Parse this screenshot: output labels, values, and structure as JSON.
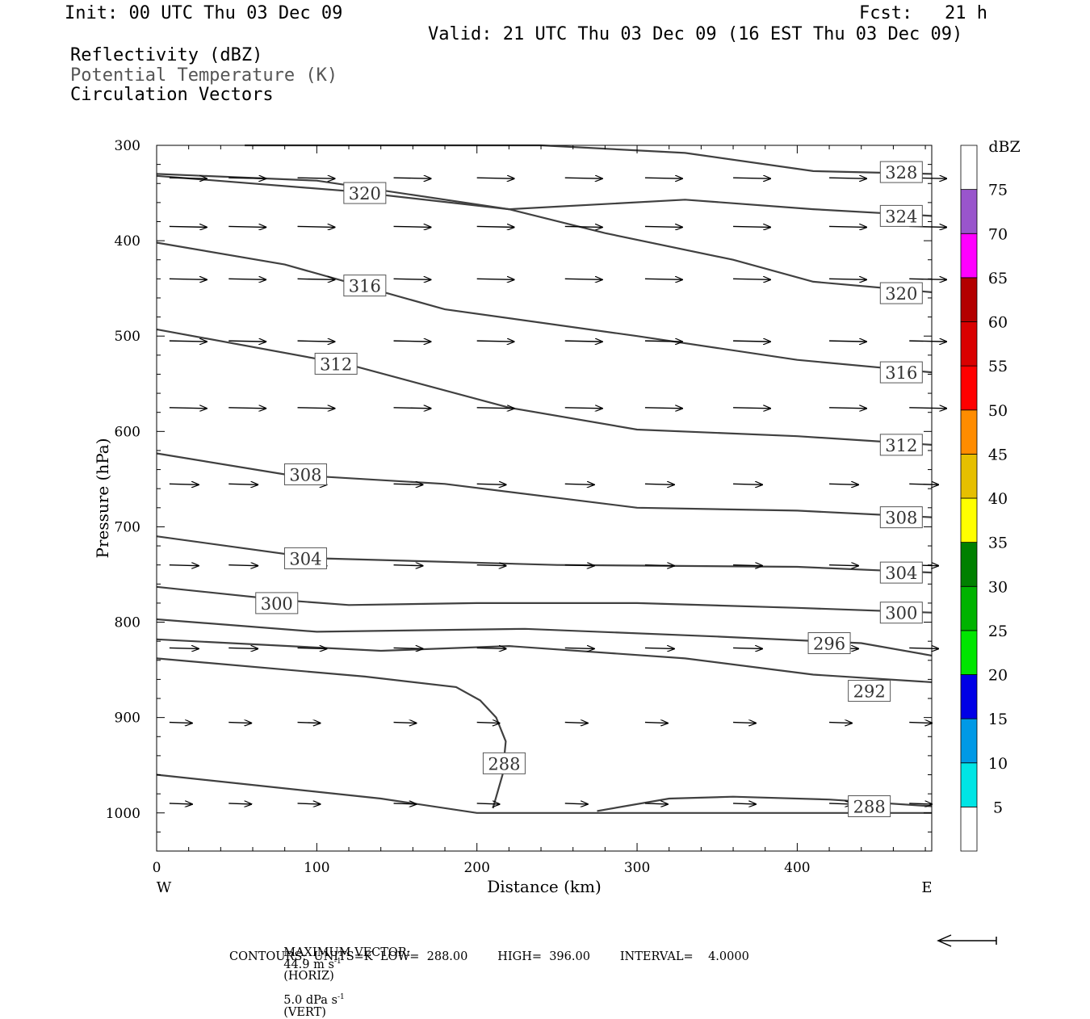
{
  "header": {
    "init": "Init: 00 UTC Thu 03 Dec 09",
    "fcst": "Fcst:   21 h",
    "valid": "Valid: 21 UTC Thu 03 Dec 09 (16 EST Thu 03 Dec 09)",
    "field1": "Reflectivity (dBZ)",
    "field2": "Potential Temperature (K)",
    "field3": "Circulation Vectors"
  },
  "footer": {
    "max_vector_label": "MAXIMUM VECTOR:",
    "max_vector_horiz": "44.9 m s",
    "horiz_tag": "(HORIZ)",
    "max_vector_vert": "5.0 dPa s",
    "vert_tag": "(VERT)",
    "sup": "-1",
    "contours": "CONTOURS:  UNITS=K  LOW=  288.00        HIGH=  396.00        INTERVAL=    4.0000"
  },
  "colors": {
    "contour": "#404040",
    "vector": "#000000"
  },
  "chart_data": {
    "type": "line",
    "title": "",
    "xlabel": "Distance (km)",
    "ylabel": "Pressure (hPa)",
    "xlim": [
      0,
      484
    ],
    "ylim": [
      1040,
      300
    ],
    "x_ticks": [
      0,
      100,
      200,
      300,
      400
    ],
    "y_ticks": [
      300,
      400,
      500,
      600,
      700,
      800,
      900,
      1000
    ],
    "x_end_labels": {
      "left": "W",
      "right": "E"
    },
    "colorbar": {
      "unit": "dBZ",
      "labels": [
        "5",
        "10",
        "15",
        "20",
        "25",
        "30",
        "35",
        "40",
        "45",
        "50",
        "55",
        "60",
        "65",
        "70",
        "75"
      ],
      "colors": [
        "#ffffff",
        "#00e5e5",
        "#0099e6",
        "#0000e6",
        "#00e600",
        "#00b300",
        "#008000",
        "#ffff00",
        "#e6bf00",
        "#ff8c00",
        "#ff0000",
        "#d90000",
        "#b30000",
        "#ff00ff",
        "#9955cc",
        "#ffffff"
      ]
    },
    "contours": [
      {
        "label": "328",
        "points": [
          [
            55,
            300
          ],
          [
            240,
            300
          ],
          [
            330,
            308
          ],
          [
            410,
            327
          ],
          [
            484,
            330
          ]
        ],
        "label_pos": [
          465,
          328
        ]
      },
      {
        "label": "324",
        "points": [
          [
            0,
            330
          ],
          [
            100,
            337
          ],
          [
            220,
            367
          ],
          [
            330,
            357
          ],
          [
            410,
            367
          ],
          [
            484,
            374
          ]
        ],
        "label_pos": [
          465,
          374
        ]
      },
      {
        "label": "320",
        "points": [
          [
            0,
            332
          ],
          [
            120,
            348
          ],
          [
            220,
            367
          ],
          [
            280,
            392
          ],
          [
            360,
            420
          ],
          [
            410,
            443
          ],
          [
            484,
            454
          ]
        ],
        "label_pos": [
          130,
          350
        ]
      },
      {
        "label": "320",
        "points": [],
        "label_pos": [
          465,
          455
        ]
      },
      {
        "label": "316",
        "points": [
          [
            0,
            402
          ],
          [
            80,
            425
          ],
          [
            180,
            472
          ],
          [
            300,
            500
          ],
          [
            400,
            525
          ],
          [
            484,
            538
          ]
        ],
        "label_pos": [
          130,
          447
        ]
      },
      {
        "label": "316",
        "points": [],
        "label_pos": [
          465,
          538
        ]
      },
      {
        "label": "312",
        "points": [
          [
            0,
            493
          ],
          [
            120,
            530
          ],
          [
            220,
            575
          ],
          [
            300,
            598
          ],
          [
            400,
            605
          ],
          [
            484,
            614
          ]
        ],
        "label_pos": [
          112,
          529
        ]
      },
      {
        "label": "312",
        "points": [],
        "label_pos": [
          465,
          614
        ]
      },
      {
        "label": "308",
        "points": [
          [
            0,
            623
          ],
          [
            80,
            645
          ],
          [
            180,
            655
          ],
          [
            300,
            680
          ],
          [
            400,
            683
          ],
          [
            484,
            690
          ]
        ],
        "label_pos": [
          93,
          645
        ]
      },
      {
        "label": "308",
        "points": [],
        "label_pos": [
          465,
          690
        ]
      },
      {
        "label": "304",
        "points": [
          [
            0,
            710
          ],
          [
            100,
            733
          ],
          [
            250,
            740
          ],
          [
            400,
            742
          ],
          [
            484,
            748
          ]
        ],
        "label_pos": [
          93,
          733
        ]
      },
      {
        "label": "304",
        "points": [],
        "label_pos": [
          465,
          748
        ]
      },
      {
        "label": "300",
        "points": [
          [
            0,
            763
          ],
          [
            80,
            777
          ],
          [
            120,
            782
          ],
          [
            200,
            780
          ],
          [
            300,
            780
          ],
          [
            400,
            785
          ],
          [
            484,
            790
          ]
        ],
        "label_pos": [
          75,
          780
        ]
      },
      {
        "label": "300",
        "points": [],
        "label_pos": [
          465,
          790
        ]
      },
      {
        "label": "296",
        "points": [
          [
            0,
            797
          ],
          [
            100,
            810
          ],
          [
            230,
            807
          ],
          [
            350,
            815
          ],
          [
            440,
            822
          ],
          [
            484,
            835
          ]
        ],
        "label_pos": [
          420,
          822
        ]
      },
      {
        "label": "292",
        "points": [
          [
            0,
            818
          ],
          [
            140,
            830
          ],
          [
            220,
            825
          ],
          [
            330,
            838
          ],
          [
            410,
            855
          ],
          [
            484,
            863
          ]
        ],
        "label_pos": [
          445,
          872
        ]
      },
      {
        "label": "288",
        "points": [
          [
            0,
            838
          ],
          [
            130,
            857
          ],
          [
            187,
            868
          ],
          [
            202,
            882
          ],
          [
            212,
            900
          ],
          [
            218,
            925
          ],
          [
            216,
            960
          ],
          [
            210,
            995
          ]
        ],
        "label_pos": [
          217,
          948
        ]
      },
      {
        "label": "288",
        "points": [
          [
            0,
            960
          ],
          [
            140,
            985
          ],
          [
            200,
            1000
          ],
          [
            300,
            1000
          ],
          [
            484,
            1000
          ]
        ],
        "label_pos": null
      },
      {
        "label": "288",
        "points": [
          [
            275,
            998
          ],
          [
            320,
            985
          ],
          [
            360,
            983
          ],
          [
            420,
            986
          ],
          [
            484,
            993
          ]
        ],
        "label_pos": [
          445,
          993
        ]
      }
    ],
    "vectors": [
      [
        [
          8,
          334
        ],
        [
          45,
          334
        ],
        [
          88,
          334
        ],
        [
          148,
          334
        ],
        [
          200,
          334
        ],
        [
          255,
          334
        ],
        [
          305,
          334
        ],
        [
          360,
          334
        ],
        [
          420,
          334
        ],
        [
          470,
          334
        ]
      ],
      [
        [
          8,
          385
        ],
        [
          45,
          385
        ],
        [
          88,
          385
        ],
        [
          148,
          385
        ],
        [
          200,
          385
        ],
        [
          255,
          385
        ],
        [
          305,
          385
        ],
        [
          360,
          385
        ],
        [
          420,
          385
        ],
        [
          470,
          385
        ]
      ],
      [
        [
          8,
          440
        ],
        [
          45,
          440
        ],
        [
          88,
          440
        ],
        [
          148,
          440
        ],
        [
          200,
          440
        ],
        [
          255,
          440
        ],
        [
          305,
          440
        ],
        [
          360,
          440
        ],
        [
          420,
          440
        ],
        [
          470,
          440
        ]
      ],
      [
        [
          8,
          505
        ],
        [
          45,
          505
        ],
        [
          88,
          505
        ],
        [
          148,
          505
        ],
        [
          200,
          505
        ],
        [
          255,
          505
        ],
        [
          305,
          505
        ],
        [
          360,
          505
        ],
        [
          420,
          505
        ],
        [
          470,
          505
        ]
      ],
      [
        [
          8,
          575
        ],
        [
          45,
          575
        ],
        [
          88,
          575
        ],
        [
          148,
          575
        ],
        [
          200,
          575
        ],
        [
          255,
          575
        ],
        [
          305,
          575
        ],
        [
          360,
          575
        ],
        [
          420,
          575
        ],
        [
          470,
          575
        ]
      ],
      [
        [
          8,
          655
        ],
        [
          45,
          655
        ],
        [
          88,
          655
        ],
        [
          148,
          655
        ],
        [
          200,
          655
        ],
        [
          255,
          655
        ],
        [
          305,
          655
        ],
        [
          360,
          655
        ],
        [
          420,
          655
        ],
        [
          470,
          655
        ]
      ],
      [
        [
          8,
          740
        ],
        [
          45,
          740
        ],
        [
          88,
          740
        ],
        [
          148,
          740
        ],
        [
          200,
          740
        ],
        [
          255,
          740
        ],
        [
          305,
          740
        ],
        [
          360,
          740
        ],
        [
          420,
          740
        ],
        [
          470,
          740
        ]
      ],
      [
        [
          8,
          827
        ],
        [
          45,
          827
        ],
        [
          88,
          827
        ],
        [
          148,
          827
        ],
        [
          200,
          827
        ],
        [
          255,
          827
        ],
        [
          305,
          827
        ],
        [
          360,
          827
        ],
        [
          420,
          827
        ],
        [
          470,
          827
        ]
      ],
      [
        [
          8,
          905
        ],
        [
          45,
          905
        ],
        [
          88,
          905
        ],
        [
          148,
          905
        ],
        [
          200,
          905
        ],
        [
          255,
          905
        ],
        [
          305,
          905
        ],
        [
          360,
          905
        ],
        [
          420,
          905
        ],
        [
          470,
          905
        ]
      ],
      [
        [
          8,
          990
        ],
        [
          45,
          990
        ],
        [
          88,
          990
        ],
        [
          148,
          990
        ],
        [
          200,
          990
        ],
        [
          255,
          990
        ],
        [
          305,
          990
        ],
        [
          360,
          990
        ],
        [
          420,
          990
        ],
        [
          470,
          990
        ]
      ]
    ]
  }
}
